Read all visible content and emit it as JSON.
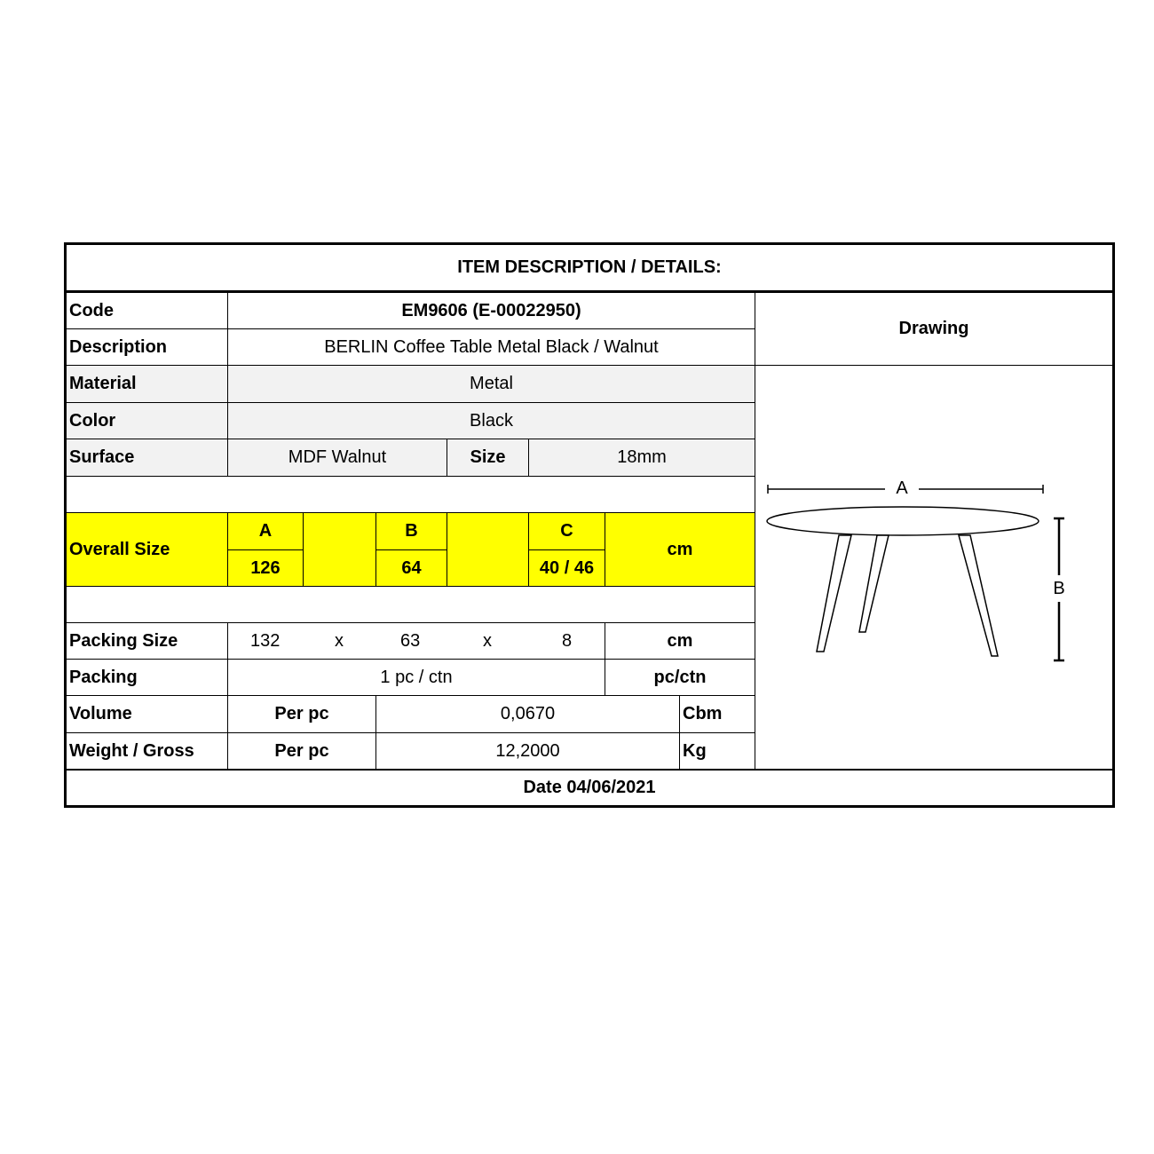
{
  "title": "ITEM DESCRIPTION / DETAILS:",
  "rows": {
    "code": {
      "label": "Code",
      "value": "EM9606 (E-00022950)"
    },
    "description": {
      "label": "Description",
      "value": "BERLIN Coffee Table Metal Black / Walnut"
    },
    "material": {
      "label": "Material",
      "value": "Metal"
    },
    "color": {
      "label": "Color",
      "value": "Black"
    },
    "surface": {
      "label": "Surface",
      "value": "MDF Walnut",
      "size_label": "Size",
      "size_value": "18mm"
    }
  },
  "overall_size": {
    "label": "Overall Size",
    "a_label": "A",
    "a_value": "126",
    "b_label": "B",
    "b_value": "64",
    "c_label": "C",
    "c_value": "40 / 46",
    "unit": "cm"
  },
  "packing_size": {
    "label": "Packing Size",
    "l": "132",
    "x1": "x",
    "w": "63",
    "x2": "x",
    "h": "8",
    "unit": "cm"
  },
  "packing": {
    "label": "Packing",
    "value": "1 pc / ctn",
    "unit": "pc/ctn"
  },
  "volume": {
    "label": "Volume",
    "per": "Per pc",
    "value": "0,0670",
    "unit": "Cbm"
  },
  "weight": {
    "label": "Weight / Gross",
    "per": "Per pc",
    "value": "12,2000",
    "unit": "Kg"
  },
  "drawing": {
    "header": "Drawing",
    "dim_a": "A",
    "dim_b": "B"
  },
  "date": "Date 04/06/2021",
  "colors": {
    "highlight": "#ffff00",
    "shaded": "#f2f2f2"
  }
}
